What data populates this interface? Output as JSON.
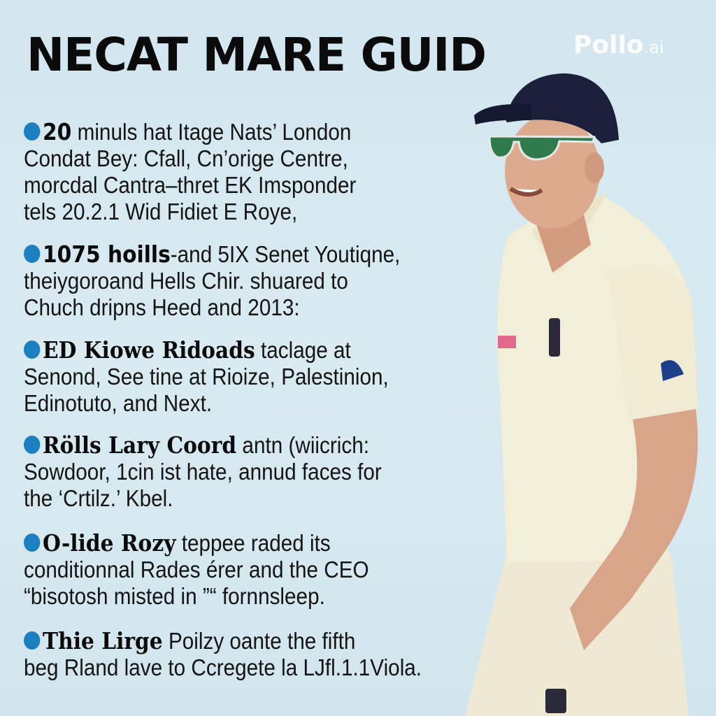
{
  "title": "NECAT MARE GUID",
  "watermark": {
    "brand": "Pollo",
    "suffix": ".ai"
  },
  "accent_color": "#1c7fc0",
  "items": [
    {
      "lead": "20",
      "first": " minuls hat Itage Nats’ London",
      "lines": [
        "Condat Bey: Cfall, Cn’orige Centre,",
        "morcdal Cantra–thret EK Imsponder",
        "tels 20.2.1 Wid Fidiet E Roye,"
      ]
    },
    {
      "lead": "1075 hoills",
      "first": "-and 5IX Senet Youtiqne,",
      "lines": [
        "theiygoroand Hells Chir. shuared to",
        "Chuch dripns Heed and 2013:"
      ]
    },
    {
      "lead": "ED Kiowe Ridoads",
      "first": " taclage at",
      "lines": [
        "Senond, See tine at Rioize, Palestinion,",
        "Edinotuto, and Next."
      ]
    },
    {
      "lead": "Rölls Lary Coord",
      "first": " antn (wiicrich:",
      "lines": [
        "Sowdoor, 1cin ist hate, annud faces for",
        "the ‘Crtilz.’ Kbel."
      ]
    },
    {
      "lead": "O-lide Rozy",
      "first": " teppee raded its",
      "lines": [
        "conditionnal Rades érer and the CEO",
        "“bisotosh misted in ”“ fornnsleep."
      ]
    },
    {
      "lead": "Thie Lirge",
      "first": " Poilzy oante the fifth",
      "lines": [
        "beg Rland lave to Ccregete la LJfl.1.1Viola."
      ]
    }
  ]
}
